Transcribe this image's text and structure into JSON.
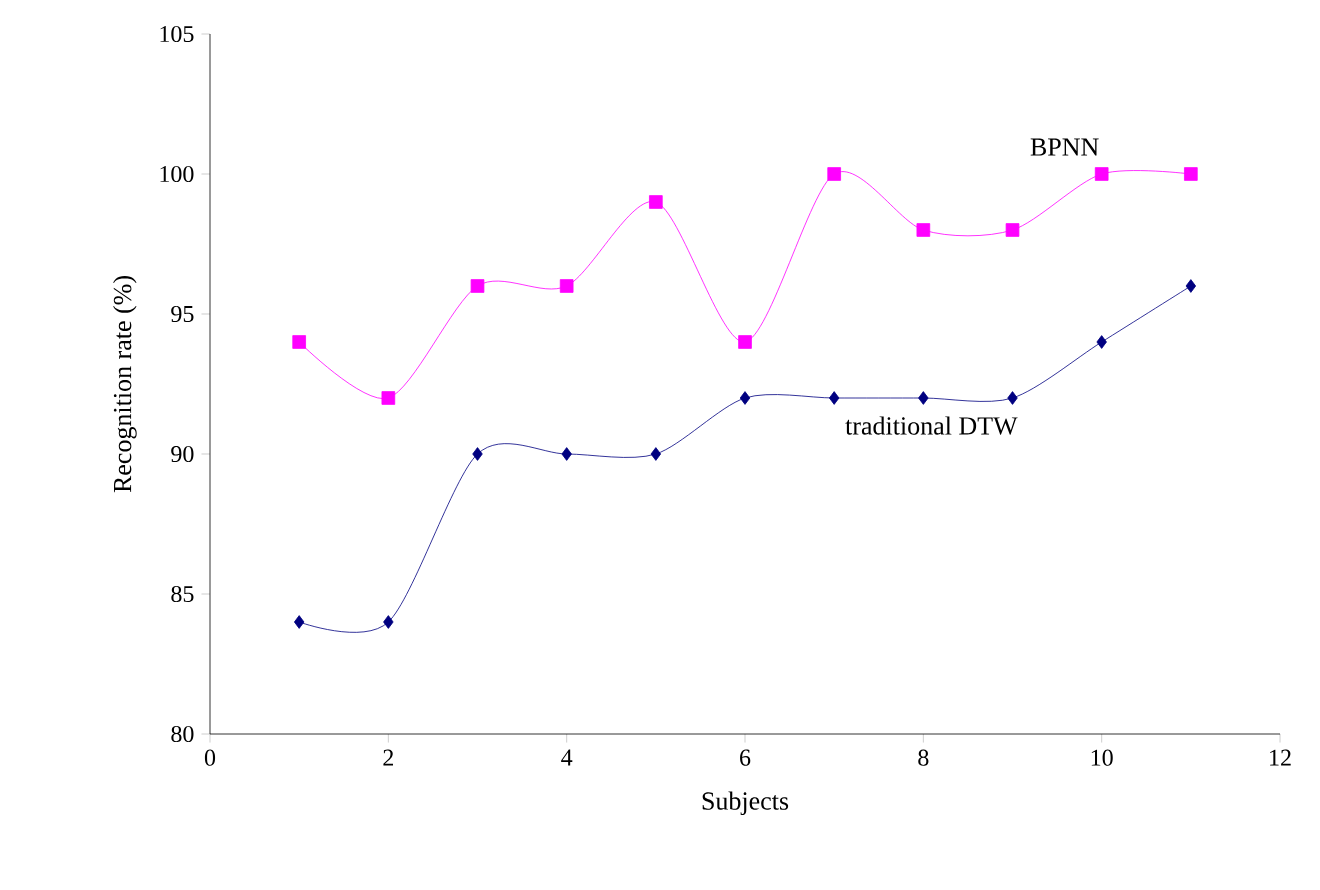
{
  "chart_data": {
    "type": "line",
    "xlabel": "Subjects",
    "ylabel": "Recognition rate (%)",
    "x": [
      1,
      2,
      3,
      4,
      5,
      6,
      7,
      8,
      9,
      10,
      11
    ],
    "series": [
      {
        "name": "BPNN",
        "color": "#ff00ff",
        "marker": "square",
        "values": [
          94,
          92,
          96,
          96,
          99,
          94,
          100,
          98,
          98,
          100,
          100
        ]
      },
      {
        "name": "traditional DTW",
        "color": "#000080",
        "marker": "diamond",
        "values": [
          84,
          84,
          90,
          90,
          90,
          92,
          92,
          92,
          92,
          94,
          96
        ]
      }
    ],
    "xlim": [
      0,
      12
    ],
    "xticks": [
      0,
      2,
      4,
      6,
      8,
      10,
      12
    ],
    "ylim": [
      80,
      105
    ],
    "yticks": [
      80,
      85,
      90,
      95,
      100,
      105
    ],
    "grid": false
  }
}
